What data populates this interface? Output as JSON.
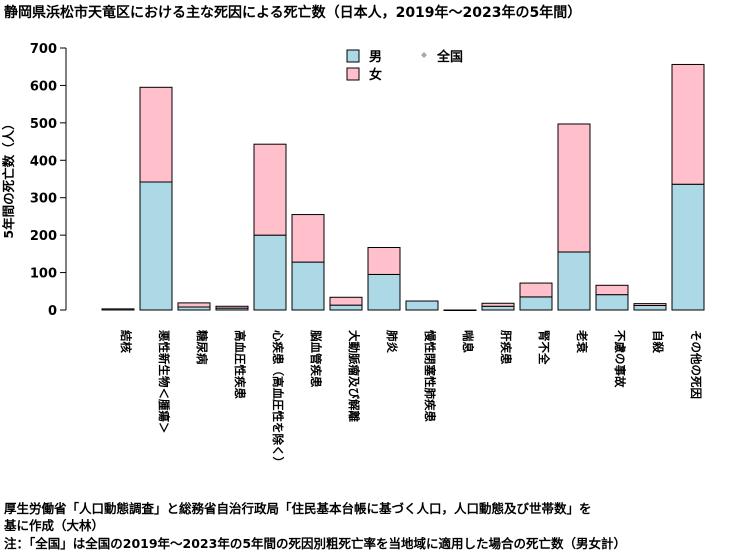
{
  "title": "静岡県浜松市天竜区における主な死因による死亡数（日本人，2019年～2023年の5年間）",
  "footnotes": [
    "厚生労働省「人口動態調査」と総務省自治行政局「住民基本台帳に基づく人口，人口動態及び世帯数」を",
    "基に作成（大林）",
    "注：「全国」は全国の2019年～2023年の5年間の死因別粗死亡率を当地域に適用した場合の死亡数（男女計）"
  ],
  "colors": {
    "male": "#add8e6",
    "female": "#ffc0cb",
    "national_marker": "#a9a9a9"
  },
  "chart_data": {
    "type": "bar",
    "stacked": true,
    "ylabel": "5年間の死亡数（人）",
    "ylim": [
      0,
      700
    ],
    "yticks": [
      0,
      100,
      200,
      300,
      400,
      500,
      600,
      700
    ],
    "categories": [
      "結核",
      "悪性新生物＜腫瘍＞",
      "糖尿病",
      "高血圧性疾患",
      "心疾患（高血圧性を除く）",
      "脳血管疾患",
      "大動脈瘤及び解離",
      "肺炎",
      "慢性閉塞性肺疾患",
      "喘息",
      "肝疾患",
      "腎不全",
      "老衰",
      "不慮の事故",
      "自殺",
      "その他の死因"
    ],
    "series": [
      {
        "name": "男",
        "key": "male",
        "values": [
          3,
          342,
          8,
          5,
          200,
          128,
          13,
          95,
          24,
          0,
          10,
          35,
          155,
          41,
          12,
          336
        ]
      },
      {
        "name": "女",
        "key": "female",
        "values": [
          0,
          253,
          11,
          5,
          243,
          127,
          21,
          72,
          0,
          0,
          8,
          37,
          342,
          25,
          5,
          320
        ]
      }
    ],
    "legend": {
      "position": "top-center",
      "entries": [
        "男",
        "女",
        "全国"
      ]
    }
  }
}
